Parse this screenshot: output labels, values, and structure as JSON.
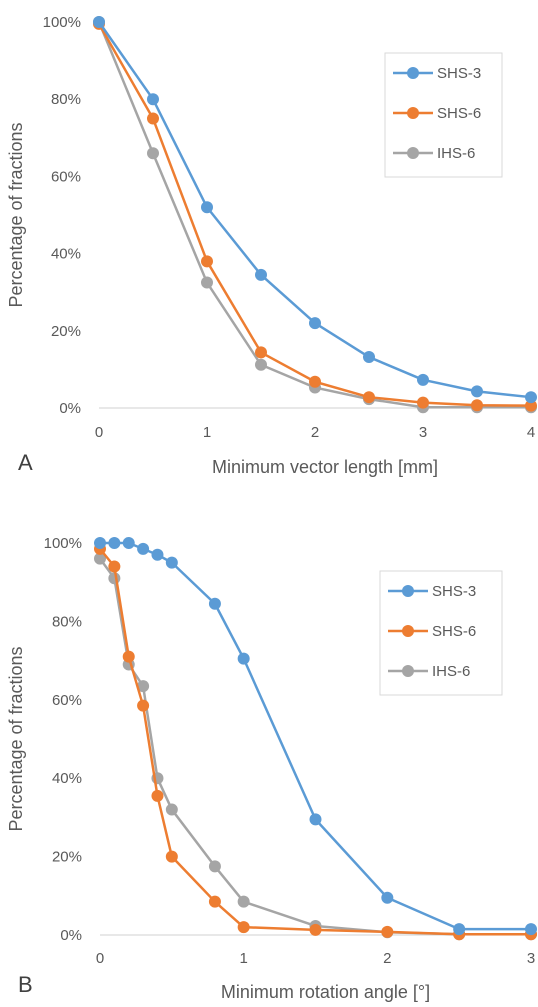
{
  "chart_data": [
    {
      "type": "line",
      "panel_label": "A",
      "xlabel": "Minimum vector length [mm]",
      "ylabel": "Percentage of fractions",
      "xlim": [
        0,
        4
      ],
      "ylim": [
        0,
        100
      ],
      "x_ticks": [
        "0",
        "1",
        "2",
        "3",
        "4"
      ],
      "y_ticks": [
        "0%",
        "20%",
        "40%",
        "60%",
        "80%",
        "100%"
      ],
      "x": [
        0,
        0.5,
        1,
        1.5,
        2,
        2.5,
        3,
        3.5,
        4
      ],
      "legend_position": "top-right",
      "grid": false,
      "series": [
        {
          "name": "SHS-3",
          "color": "#5B9BD5",
          "values": [
            100,
            80,
            52,
            34.5,
            22,
            13.2,
            7.3,
            4.3,
            2.8
          ]
        },
        {
          "name": "SHS-6",
          "color": "#ED7D31",
          "values": [
            99.5,
            75,
            38,
            14.4,
            6.8,
            2.8,
            1.4,
            0.7,
            0.6
          ]
        },
        {
          "name": "IHS-6",
          "color": "#A5A5A5",
          "values": [
            100,
            66,
            32.5,
            11.2,
            5.3,
            2.3,
            0.2,
            0.2,
            0.2
          ]
        }
      ]
    },
    {
      "type": "line",
      "panel_label": "B",
      "xlabel": "Minimum rotation angle [°]",
      "ylabel": "Percentage of fractions",
      "xlim": [
        0,
        3
      ],
      "ylim": [
        0,
        100
      ],
      "x_ticks": [
        "0",
        "1",
        "2",
        "3"
      ],
      "y_ticks": [
        "0%",
        "20%",
        "40%",
        "60%",
        "80%",
        "100%"
      ],
      "x": [
        0,
        0.1,
        0.2,
        0.3,
        0.4,
        0.5,
        0.8,
        1,
        1.5,
        2,
        2.5,
        3
      ],
      "legend_position": "top-right",
      "grid": false,
      "series": [
        {
          "name": "SHS-3",
          "color": "#5B9BD5",
          "values": [
            100,
            100,
            100,
            98.5,
            97,
            95,
            84.5,
            70.5,
            29.5,
            9.5,
            1.5,
            1.5
          ]
        },
        {
          "name": "SHS-6",
          "color": "#ED7D31",
          "values": [
            98.5,
            94,
            71,
            58.5,
            35.5,
            20,
            8.5,
            2,
            1.3,
            0.8,
            0.2,
            0.2
          ]
        },
        {
          "name": "IHS-6",
          "color": "#A5A5A5",
          "values": [
            96,
            91,
            69,
            63.5,
            40,
            32,
            17.5,
            8.5,
            2.3,
            0.7,
            0.2,
            0.2
          ]
        }
      ]
    }
  ]
}
